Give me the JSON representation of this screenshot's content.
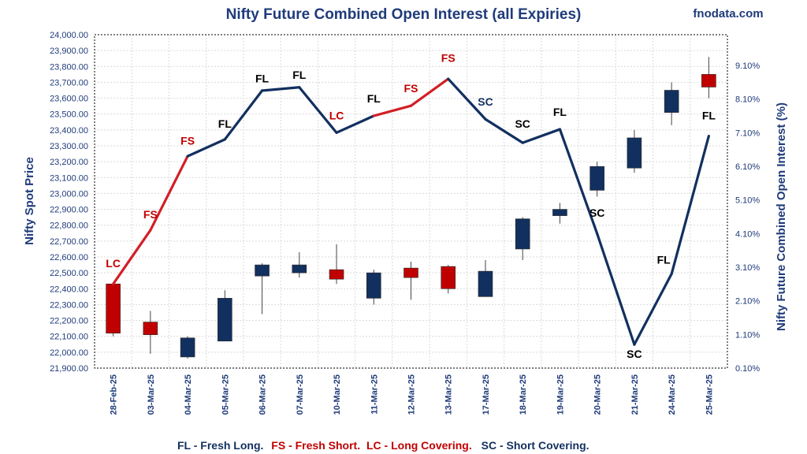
{
  "title": "Nifty Future Combined Open Interest (all Expiries)",
  "brand": "fnodata.com",
  "colors": {
    "up": "#12305f",
    "down": "#c00000",
    "line_fresh_short": "#d21f26",
    "line_other": "#12305f",
    "text": "#1f3b7a"
  },
  "legend": {
    "fl": "FL - Fresh Long.",
    "fs": "FS - Fresh Short.",
    "lc": "LC - Long Covering.",
    "sc": "SC - Short Covering."
  },
  "chart_data": {
    "type": "candlestick+line",
    "title": "Nifty Future Combined Open Interest (all Expiries)",
    "ylabel_left": "Nifty Spot Price",
    "ylabel_right": "Nifty Future Combined Open Interest (%)",
    "ylim_left": [
      21900,
      24000
    ],
    "yticks_left": [
      "21,900.00",
      "22,000.00",
      "22,100.00",
      "22,200.00",
      "22,300.00",
      "22,400.00",
      "22,500.00",
      "22,600.00",
      "22,700.00",
      "22,800.00",
      "22,900.00",
      "23,000.00",
      "23,100.00",
      "23,200.00",
      "23,300.00",
      "23,400.00",
      "23,500.00",
      "23,600.00",
      "23,700.00",
      "23,800.00",
      "23,900.00",
      "24,000.00"
    ],
    "ylim_right": [
      0.1,
      9.1
    ],
    "yticks_right": [
      "0.10%",
      "1.10%",
      "2.10%",
      "3.10%",
      "4.10%",
      "5.10%",
      "6.10%",
      "7.10%",
      "8.10%",
      "9.10%"
    ],
    "categories": [
      "28-Feb-25",
      "03-Mar-25",
      "04-Mar-25",
      "05-Mar-25",
      "06-Mar-25",
      "07-Mar-25",
      "10-Mar-25",
      "11-Mar-25",
      "12-Mar-25",
      "13-Mar-25",
      "17-Mar-25",
      "18-Mar-25",
      "19-Mar-25",
      "20-Mar-25",
      "21-Mar-25",
      "24-Mar-25",
      "25-Mar-25"
    ],
    "candles": [
      {
        "open": 22430,
        "high": 22430,
        "low": 22100,
        "close": 22120
      },
      {
        "open": 22190,
        "high": 22260,
        "low": 21990,
        "close": 22110
      },
      {
        "open": 21970,
        "high": 22100,
        "low": 21960,
        "close": 22090
      },
      {
        "open": 22070,
        "high": 22390,
        "low": 22070,
        "close": 22340
      },
      {
        "open": 22480,
        "high": 22560,
        "low": 22240,
        "close": 22550
      },
      {
        "open": 22500,
        "high": 22630,
        "low": 22470,
        "close": 22550
      },
      {
        "open": 22520,
        "high": 22680,
        "low": 22430,
        "close": 22460
      },
      {
        "open": 22340,
        "high": 22520,
        "low": 22300,
        "close": 22500
      },
      {
        "open": 22530,
        "high": 22570,
        "low": 22330,
        "close": 22470
      },
      {
        "open": 22540,
        "high": 22550,
        "low": 22370,
        "close": 22400
      },
      {
        "open": 22350,
        "high": 22580,
        "low": 22350,
        "close": 22510
      },
      {
        "open": 22650,
        "high": 22850,
        "low": 22580,
        "close": 22840
      },
      {
        "open": 22860,
        "high": 22940,
        "low": 22810,
        "close": 22900
      },
      {
        "open": 23020,
        "high": 23200,
        "low": 22980,
        "close": 23170
      },
      {
        "open": 23160,
        "high": 23400,
        "low": 23130,
        "close": 23350
      },
      {
        "open": 23510,
        "high": 23700,
        "low": 23430,
        "close": 23650
      },
      {
        "open": 23750,
        "high": 23860,
        "low": 23600,
        "close": 23670
      }
    ],
    "oi_percent": [
      2.6,
      4.2,
      6.4,
      6.9,
      8.35,
      8.45,
      7.1,
      7.6,
      7.9,
      8.7,
      7.5,
      6.8,
      7.2,
      4.1,
      0.8,
      2.9,
      7.0
    ],
    "segment_type": [
      "LC",
      "FS",
      "FS",
      "FL",
      "FL",
      "FL",
      "LC",
      "FL",
      "FS",
      "FS",
      "SC",
      "SC",
      "FL",
      "SC",
      "SC",
      "FL",
      "FL"
    ],
    "annotations": [
      {
        "label": "LC",
        "oi": 3.1,
        "dx": 0
      },
      {
        "label": "FS",
        "oi": 4.55,
        "dx": 0
      },
      {
        "label": "FS",
        "oi": 6.75,
        "dx": 0
      },
      {
        "label": "FL",
        "oi": 7.25,
        "dx": 0
      },
      {
        "label": "FL",
        "oi": 8.6,
        "dx": 0
      },
      {
        "label": "FL",
        "oi": 8.7,
        "dx": 0
      },
      {
        "label": "LC",
        "oi": 7.5,
        "dx": 0
      },
      {
        "label": "FL",
        "oi": 8.0,
        "dx": 0
      },
      {
        "label": "FS",
        "oi": 8.3,
        "dx": 0
      },
      {
        "label": "FS",
        "oi": 9.2,
        "dx": 0
      },
      {
        "label": "SC",
        "oi": 7.9,
        "dx": 0
      },
      {
        "label": "SC",
        "oi": 7.25,
        "dx": 0
      },
      {
        "label": "FL",
        "oi": 7.6,
        "dx": 0
      },
      {
        "label": "SC",
        "oi": 4.6,
        "dx": 0
      },
      {
        "label": "SC",
        "oi": 0.4,
        "dx": 0
      },
      {
        "label": "FL",
        "oi": 3.2,
        "dx": -10
      },
      {
        "label": "FL",
        "oi": 7.5,
        "dx": 0
      }
    ],
    "grid": true,
    "legend_position": "bottom"
  }
}
